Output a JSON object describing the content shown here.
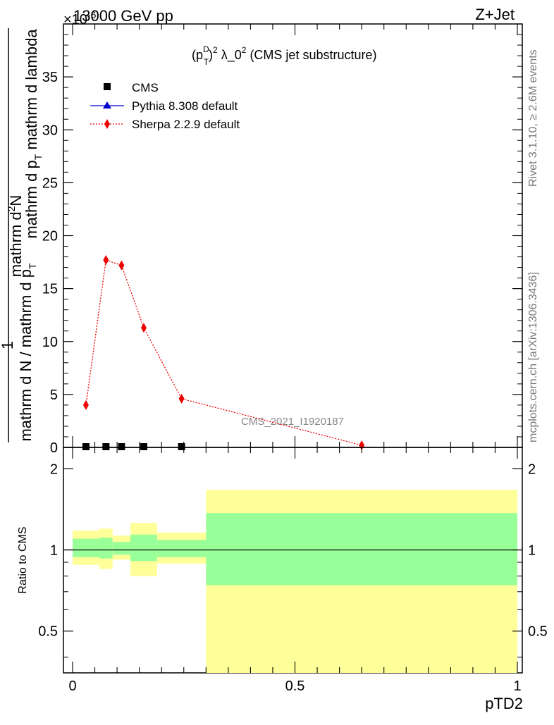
{
  "header": {
    "energy": "13000 GeV pp",
    "process": "Z+Jet",
    "multiplier": "×10",
    "multiplier_exp": "-6"
  },
  "side_text": {
    "rivet": "Rivet 3.1.10, ≥ 2.6M events",
    "mcplots": "mcplots.cern.ch [arXiv:1306.3436]"
  },
  "colors": {
    "cms": "#000000",
    "pythia": "#0000cc",
    "sherpa": "#ee0000",
    "band_inner": "#99ff99",
    "band_outer": "#ffff99"
  },
  "chart_data": [
    {
      "type": "scatter",
      "panel": "main",
      "title": "(p_T^D)^2 λ_0^2 (CMS jet substructure)",
      "title_parts": {
        "base1": "(p",
        "sub": "T",
        "sup1": "D",
        "close": ")",
        "sup2": "2",
        "rest": " λ_0",
        "sup3": "2",
        "tail": " (CMS jet substructure)"
      },
      "ylabel_top": "mathrm d²N",
      "ylabel_top_parts": {
        "main": "mathrm d",
        "sup": "2",
        "end": "N"
      },
      "ylabel_top_den": "mathrm d p_T mathrm d lambda",
      "ylabel_one": "1",
      "ylabel_bottom": "mathrm d N / mathrm d p_T",
      "ylabel_bottom_parts": {
        "start": "mathrm d N / mathrm d p",
        "sub": "T"
      },
      "ylabel_top_den_parts": {
        "start": "mathrm d p",
        "sub": "T",
        "end": " mathrm d lambda"
      },
      "yticks": [
        "0",
        "5",
        "10",
        "15",
        "20",
        "25",
        "30",
        "35"
      ],
      "ylim": [
        0,
        40
      ],
      "xlim": [
        -0.02,
        1.0
      ],
      "watermark": "CMS_2021_I1920187",
      "legend": [
        "CMS",
        "Pythia 8.308 default",
        "Sherpa 2.2.9 default"
      ],
      "series": [
        {
          "name": "CMS",
          "x": [
            0.03,
            0.075,
            0.11,
            0.16,
            0.245
          ],
          "y": [
            0.0,
            0.0,
            0.0,
            0.0,
            0.0
          ]
        },
        {
          "name": "Pythia 8.308 default",
          "x": [],
          "y": []
        },
        {
          "name": "Sherpa 2.2.9 default",
          "x": [
            0.03,
            0.075,
            0.11,
            0.16,
            0.245,
            0.65
          ],
          "y": [
            4.0,
            17.7,
            17.2,
            11.3,
            4.6,
            0.2
          ]
        }
      ]
    },
    {
      "type": "area",
      "panel": "ratio",
      "ylabel": "Ratio to CMS",
      "xlabel": "pTD2",
      "xticks": [
        "0",
        "0.5",
        "1"
      ],
      "yticks": [
        "0.5",
        "1",
        "2"
      ],
      "ylim": [
        0.35,
        2.4
      ],
      "log_y": true,
      "bins": [
        {
          "lo": 0.0,
          "hi": 0.06,
          "inner": [
            0.94,
            1.1
          ],
          "outer": [
            0.88,
            1.18
          ]
        },
        {
          "lo": 0.06,
          "hi": 0.09,
          "inner": [
            0.93,
            1.11
          ],
          "outer": [
            0.85,
            1.2
          ]
        },
        {
          "lo": 0.09,
          "hi": 0.13,
          "inner": [
            0.96,
            1.07
          ],
          "outer": [
            0.92,
            1.13
          ]
        },
        {
          "lo": 0.13,
          "hi": 0.19,
          "inner": [
            0.91,
            1.14
          ],
          "outer": [
            0.8,
            1.26
          ]
        },
        {
          "lo": 0.19,
          "hi": 0.3,
          "inner": [
            0.94,
            1.09
          ],
          "outer": [
            0.89,
            1.16
          ]
        },
        {
          "lo": 0.3,
          "hi": 1.0,
          "inner": [
            0.74,
            1.37
          ],
          "outer": [
            0.35,
            1.67
          ]
        }
      ],
      "reference": 1.0
    }
  ]
}
